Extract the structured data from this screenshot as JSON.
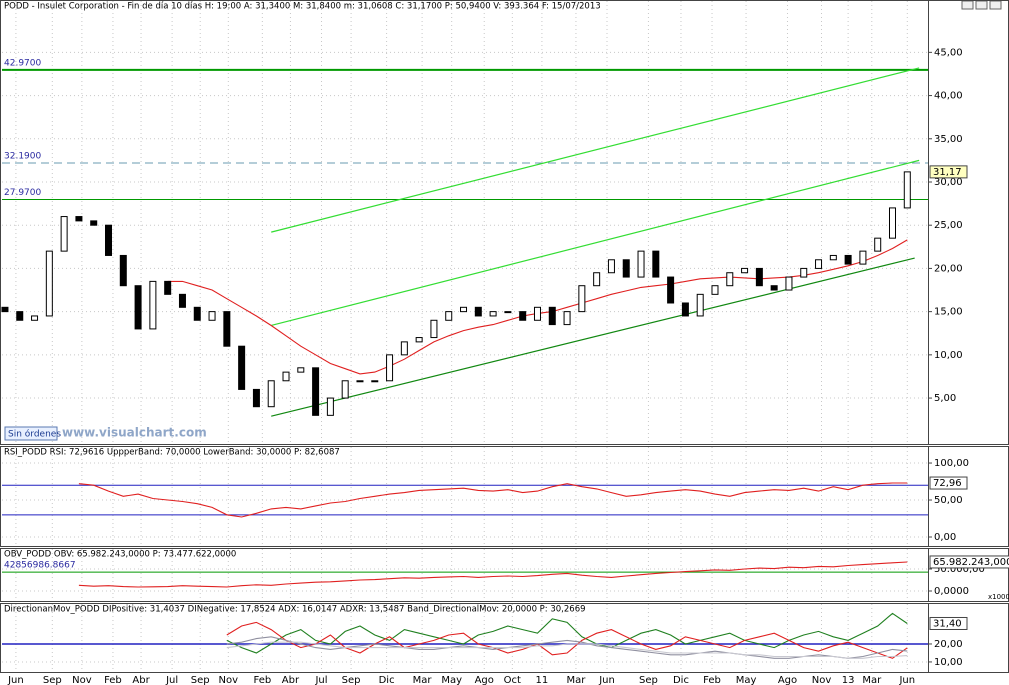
{
  "chart_data": [
    {
      "type": "candlestick",
      "title": "PODD - Insulet Corporation - Fin de día 10 días  H: 19:00  A: 31,3400  M: 31,8400  m: 31,0608  C: 31,1700  P: 50,9400  V: 393.364  F: 15/07/2013",
      "xlim": [
        -0.2,
        62.4
      ],
      "xticks": [
        {
          "value": 0.74,
          "label": "Jun"
        },
        {
          "value": 3.2,
          "label": "Sep"
        },
        {
          "value": 5.2,
          "label": "Nov"
        },
        {
          "value": 7.3,
          "label": "Feb"
        },
        {
          "value": 9.2,
          "label": "Abr"
        },
        {
          "value": 11.3,
          "label": "Jul"
        },
        {
          "value": 13.2,
          "label": "Sep"
        },
        {
          "value": 15.1,
          "label": "Nov"
        },
        {
          "value": 17.4,
          "label": "Feb"
        },
        {
          "value": 19.3,
          "label": "Abr"
        },
        {
          "value": 21.4,
          "label": "Jul"
        },
        {
          "value": 23.4,
          "label": "Sep"
        },
        {
          "value": 25.8,
          "label": "Dic"
        },
        {
          "value": 28.2,
          "label": "Mar"
        },
        {
          "value": 30.2,
          "label": "May"
        },
        {
          "value": 32.4,
          "label": "Ago"
        },
        {
          "value": 34.3,
          "label": "Oct"
        },
        {
          "value": 36.3,
          "label": "11"
        },
        {
          "value": 38.6,
          "label": "Mar"
        },
        {
          "value": 40.7,
          "label": "Jun"
        },
        {
          "value": 43.5,
          "label": "Sep"
        },
        {
          "value": 45.7,
          "label": "Dic"
        },
        {
          "value": 47.8,
          "label": "Feb"
        },
        {
          "value": 50.1,
          "label": "May"
        },
        {
          "value": 52.9,
          "label": "Ago"
        },
        {
          "value": 55.2,
          "label": "Nov"
        },
        {
          "value": 57,
          "label": "13"
        },
        {
          "value": 58.6,
          "label": "Mar"
        },
        {
          "value": 61,
          "label": "Jun"
        }
      ],
      "ylim": [
        -0.2,
        49.9
      ],
      "yticks": [
        {
          "value": 5,
          "label": "5,00"
        },
        {
          "value": 10,
          "label": "10,00"
        },
        {
          "value": 15,
          "label": "15,00"
        },
        {
          "value": 20,
          "label": "20,00"
        },
        {
          "value": 25,
          "label": "25,00"
        },
        {
          "value": 30,
          "label": "30,00"
        },
        {
          "value": 35,
          "label": "35,00"
        },
        {
          "value": 40,
          "label": "40,00"
        },
        {
          "value": 45,
          "label": "45,00"
        }
      ],
      "grid": true,
      "open": [
        15.5,
        15,
        14,
        14.5,
        22,
        26,
        25.5,
        25,
        21.5,
        18,
        13,
        18.5,
        17,
        15.5,
        14,
        15,
        11,
        6,
        4,
        7,
        8,
        8.5,
        3,
        5,
        7,
        7,
        7,
        10,
        11.5,
        12,
        14,
        15,
        15.5,
        14.5,
        15,
        15,
        14,
        15.5,
        13.5,
        15,
        18,
        19.5,
        21,
        19,
        22,
        19,
        16,
        14.5,
        17,
        18,
        19.5,
        20,
        18,
        17.5,
        19,
        20,
        21,
        21.5,
        20.5,
        22,
        23.5,
        27
      ],
      "close": [
        15,
        14,
        14.5,
        22,
        26,
        25.5,
        25,
        21.5,
        18,
        13,
        18.5,
        17,
        15.5,
        14,
        15,
        11,
        6,
        4,
        7,
        8,
        8.5,
        3,
        5,
        7,
        7,
        7,
        10,
        11.5,
        12,
        14,
        15,
        15.5,
        14.5,
        15,
        15,
        14,
        15.5,
        13.5,
        15,
        18,
        19.5,
        21,
        19,
        22,
        19,
        16,
        14.5,
        17,
        18,
        19.5,
        20,
        18,
        17.5,
        19,
        20,
        21,
        21.5,
        20.5,
        22,
        23.5,
        27,
        31.17
      ],
      "up_color": "#ffffff",
      "down_color": "#000000",
      "series": [
        {
          "color": "#e02020",
          "values": [
            null,
            null,
            null,
            null,
            null,
            null,
            null,
            null,
            null,
            null,
            null,
            18.5,
            18.5,
            18,
            17.5,
            16.5,
            15.5,
            14.5,
            13.4,
            12.2,
            11,
            10,
            9,
            8.4,
            7.8,
            8,
            8.7,
            9.5,
            10.5,
            11.5,
            12.2,
            12.8,
            13.2,
            13.5,
            14,
            14.5,
            14.8,
            15,
            15.5,
            16,
            16.5,
            17,
            17.4,
            17.8,
            18,
            18.2,
            18.5,
            18.8,
            18.9,
            19,
            18.9,
            18.8,
            18.9,
            19,
            19.2,
            19.5,
            19.9,
            20.3,
            20.8,
            21.5,
            22.3,
            23.3
          ]
        }
      ],
      "trendlines": [
        {
          "x": [
            18,
            61.5
          ],
          "values": [
            2.9,
            21.2
          ],
          "color": "#118811"
        },
        {
          "x": [
            18,
            61.8
          ],
          "values": [
            13.4,
            32.5
          ],
          "color": "#33dd33"
        },
        {
          "x": [
            18,
            61.8
          ],
          "values": [
            24.2,
            43.2
          ],
          "color": "#33dd33"
        }
      ],
      "levels": [
        {
          "value": 42.97,
          "label": "42.9700",
          "color": "#009900",
          "width": 2,
          "dash": ""
        },
        {
          "value": 32.19,
          "label": "32.1900",
          "color": "#6a9bb0",
          "width": 1,
          "dash": "8 5"
        },
        {
          "value": 27.97,
          "label": "27.9700",
          "color": "#009900",
          "width": 1,
          "dash": ""
        }
      ],
      "last_label": "31,17",
      "watermark": "www.visualchart.com",
      "button": "Sin órdenes"
    },
    {
      "type": "line",
      "title": "RSI_PODD  RSI: 72,9616  UppperBand: 70,0000  LowerBand: 30,0000  P: 82,6087",
      "ylim": [
        -10.8,
        109.5
      ],
      "yticks": [
        {
          "value": 0,
          "label": "0,00"
        },
        {
          "value": 50,
          "label": "50,00"
        },
        {
          "value": 100,
          "label": "100,00"
        }
      ],
      "series": [
        {
          "color": "#e02020",
          "values": [
            null,
            null,
            null,
            null,
            null,
            72,
            70,
            62,
            55,
            58,
            52,
            50,
            48,
            45,
            40,
            30,
            27,
            32,
            38,
            40,
            38,
            42,
            46,
            48,
            52,
            55,
            58,
            60,
            63,
            64,
            65,
            66,
            63,
            62,
            64,
            60,
            62,
            68,
            72,
            68,
            65,
            60,
            55,
            57,
            60,
            62,
            64,
            62,
            58,
            55,
            60,
            62,
            64,
            63,
            66,
            62,
            68,
            64,
            70,
            72,
            73,
            72.96
          ]
        }
      ],
      "levels": [
        {
          "value": 70,
          "color": "#2020c0",
          "width": 1,
          "dash": ""
        },
        {
          "value": 30,
          "color": "#2020c0",
          "width": 1,
          "dash": ""
        }
      ],
      "last_label": "72,96"
    },
    {
      "type": "line",
      "title": "OBV_PODD  OBV: 65.982.243,0000  P: 73.477.622,0000",
      "ylim": [
        -22727,
        79545
      ],
      "yticks": [
        {
          "value": 0,
          "label": "0,0000"
        },
        {
          "value": 50000,
          "label": "50.000,00"
        }
      ],
      "unit_label": "x1000",
      "series": [
        {
          "color": "#e02020",
          "values": [
            null,
            null,
            null,
            null,
            null,
            13000,
            11000,
            12000,
            10000,
            9000,
            9500,
            10000,
            12000,
            11000,
            10000,
            9000,
            12000,
            14000,
            13000,
            16000,
            18000,
            20000,
            21000,
            23000,
            25000,
            26000,
            28000,
            30000,
            29000,
            31000,
            32000,
            33000,
            31000,
            33000,
            34000,
            33000,
            35000,
            38000,
            40000,
            36000,
            33000,
            31000,
            34000,
            37000,
            40000,
            42000,
            44000,
            46000,
            48000,
            47000,
            50000,
            52000,
            51000,
            54000,
            53000,
            56000,
            55000,
            58000,
            60000,
            62000,
            64000,
            65982.243
          ]
        }
      ],
      "levels": [
        {
          "value": 42856.9868667,
          "label": "42856986.8667",
          "color": "#009900",
          "width": 1,
          "dash": ""
        }
      ],
      "last_label": "65.982.243,0000"
    },
    {
      "type": "line",
      "title": "DirectionanMov_PODD  DIPositive: 31,4037  DINegative: 17,8524  ADX: 16,0147  ADXR: 13,5487  Band_DirectionalMov: 20,0000  P: 30,2669",
      "ylim": [
        4.4,
        42.8
      ],
      "yticks": [
        {
          "value": 10,
          "label": "10,00"
        },
        {
          "value": 20,
          "label": "20,00"
        }
      ],
      "series": [
        {
          "color": "#208020",
          "values": [
            null,
            null,
            null,
            null,
            null,
            null,
            null,
            null,
            null,
            null,
            null,
            null,
            null,
            null,
            null,
            22,
            18,
            15,
            20,
            25,
            28,
            22,
            20,
            27,
            30,
            25,
            22,
            28,
            26,
            24,
            22,
            20,
            25,
            27,
            30,
            28,
            26,
            34,
            32,
            24,
            20,
            18,
            22,
            26,
            28,
            25,
            20,
            22,
            24,
            26,
            22,
            20,
            18,
            22,
            25,
            27,
            24,
            22,
            26,
            30,
            37,
            31.4
          ]
        },
        {
          "color": "#e02020",
          "values": [
            null,
            null,
            null,
            null,
            null,
            null,
            null,
            null,
            null,
            null,
            null,
            null,
            null,
            null,
            null,
            25,
            30,
            32,
            28,
            22,
            18,
            20,
            25,
            18,
            15,
            20,
            24,
            18,
            20,
            22,
            25,
            26,
            20,
            18,
            15,
            17,
            20,
            14,
            15,
            22,
            26,
            28,
            24,
            20,
            17,
            19,
            24,
            22,
            20,
            18,
            22,
            24,
            26,
            22,
            18,
            16,
            19,
            21,
            18,
            15,
            12,
            17.85
          ]
        },
        {
          "color": "#9090a0",
          "values": [
            null,
            null,
            null,
            null,
            null,
            null,
            null,
            null,
            null,
            null,
            null,
            null,
            null,
            null,
            null,
            20,
            21,
            23,
            24,
            22,
            20,
            18,
            17,
            18,
            19,
            20,
            19,
            18,
            17,
            17,
            18,
            19,
            18,
            17,
            18,
            19,
            20,
            21,
            22,
            21,
            19,
            18,
            17,
            16,
            15,
            14,
            14,
            15,
            16,
            15,
            14,
            13,
            12,
            12,
            13,
            14,
            13,
            12,
            13,
            15,
            17,
            16.01
          ]
        },
        {
          "color": "#c8c8d0",
          "values": [
            null,
            null,
            null,
            null,
            null,
            null,
            null,
            null,
            null,
            null,
            null,
            null,
            null,
            null,
            null,
            18,
            19,
            20,
            21,
            21,
            21,
            20,
            19,
            18,
            18,
            18,
            18,
            18,
            18,
            18,
            18,
            18,
            18,
            18,
            18,
            18,
            19,
            19,
            20,
            20,
            20,
            19,
            18,
            17,
            16,
            15,
            15,
            15,
            15,
            15,
            14,
            14,
            13,
            13,
            13,
            13,
            13,
            12,
            12,
            13,
            13,
            13.5487
          ]
        }
      ],
      "levels": [
        {
          "value": 20,
          "color": "#2020c0",
          "width": 1.5,
          "dash": ""
        }
      ],
      "last_label": "31,40"
    }
  ]
}
